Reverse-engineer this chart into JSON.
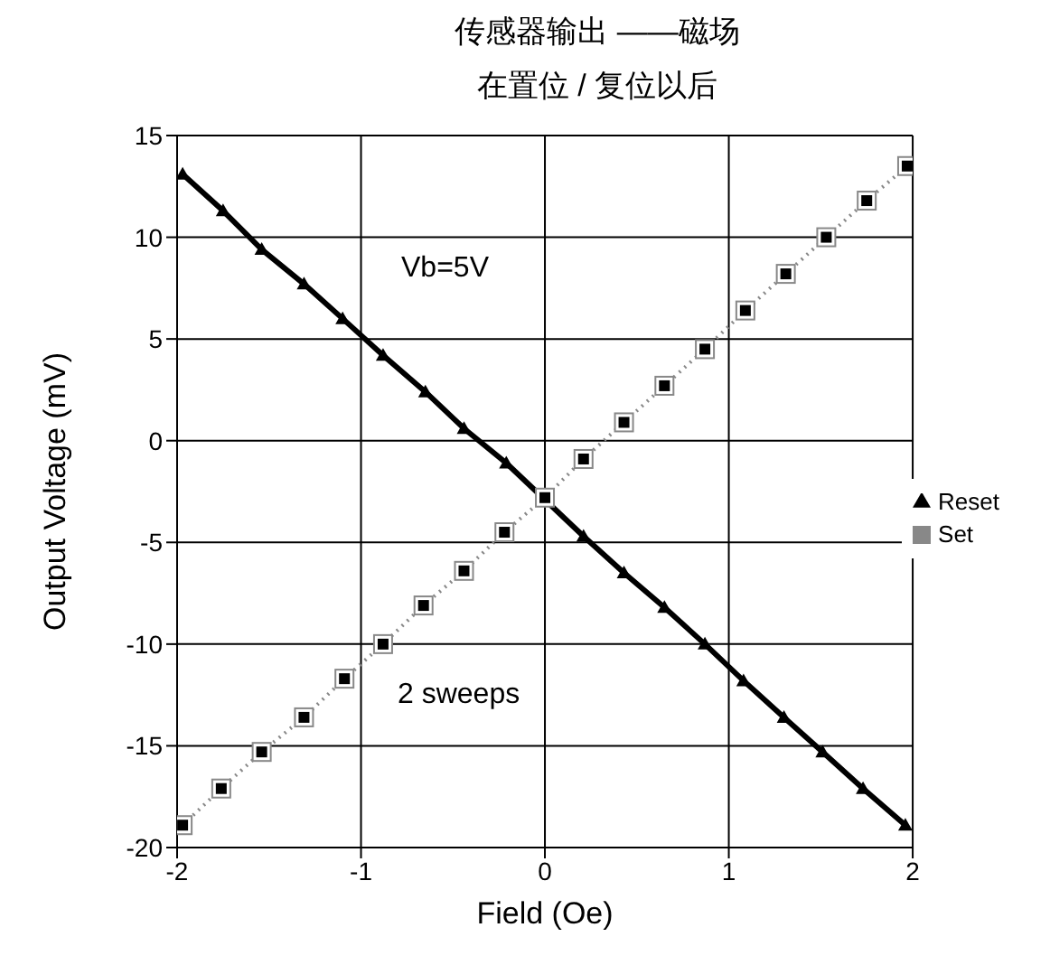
{
  "chart_data": {
    "type": "line",
    "title": "传感器输出 ——磁场",
    "subtitle": "在置位 / 复位以后",
    "xlabel": "Field (Oe)",
    "ylabel": "Output Voltage (mV)",
    "xlim": [
      -2,
      2
    ],
    "xticks": [
      -2,
      -1,
      0,
      1,
      2
    ],
    "ylim": [
      -20,
      15
    ],
    "yticks": [
      -20,
      -15,
      -10,
      -5,
      0,
      5,
      10,
      15
    ],
    "grid": true,
    "legend": "right",
    "annotations": [
      "Vb=5V",
      "2 sweeps"
    ],
    "series": [
      {
        "name": "Reset",
        "color": "#000000",
        "marker": "triangle",
        "line_style": "solid",
        "x": [
          -1.97,
          -1.75,
          -1.54,
          -1.31,
          -1.1,
          -0.88,
          -0.65,
          -0.44,
          -0.21,
          0.0,
          0.21,
          0.43,
          0.65,
          0.87,
          1.08,
          1.3,
          1.51,
          1.73,
          1.96
        ],
        "values": [
          13.1,
          11.3,
          9.4,
          7.7,
          6.0,
          4.2,
          2.4,
          0.6,
          -1.1,
          -2.9,
          -4.7,
          -6.5,
          -8.2,
          -10.0,
          -11.8,
          -13.6,
          -15.3,
          -17.1,
          -18.9
        ]
      },
      {
        "name": "Set",
        "color": "#000000",
        "marker": "square",
        "line_style": "dotted",
        "x": [
          -1.97,
          -1.76,
          -1.54,
          -1.31,
          -1.09,
          -0.88,
          -0.66,
          -0.44,
          -0.22,
          0.0,
          0.21,
          0.43,
          0.65,
          0.87,
          1.09,
          1.31,
          1.53,
          1.75,
          1.97
        ],
        "values": [
          -18.9,
          -17.1,
          -15.3,
          -13.6,
          -11.7,
          -10.0,
          -8.1,
          -6.4,
          -4.5,
          -2.8,
          -0.9,
          0.9,
          2.7,
          4.5,
          6.4,
          8.2,
          10.0,
          11.8,
          13.5
        ]
      }
    ]
  }
}
